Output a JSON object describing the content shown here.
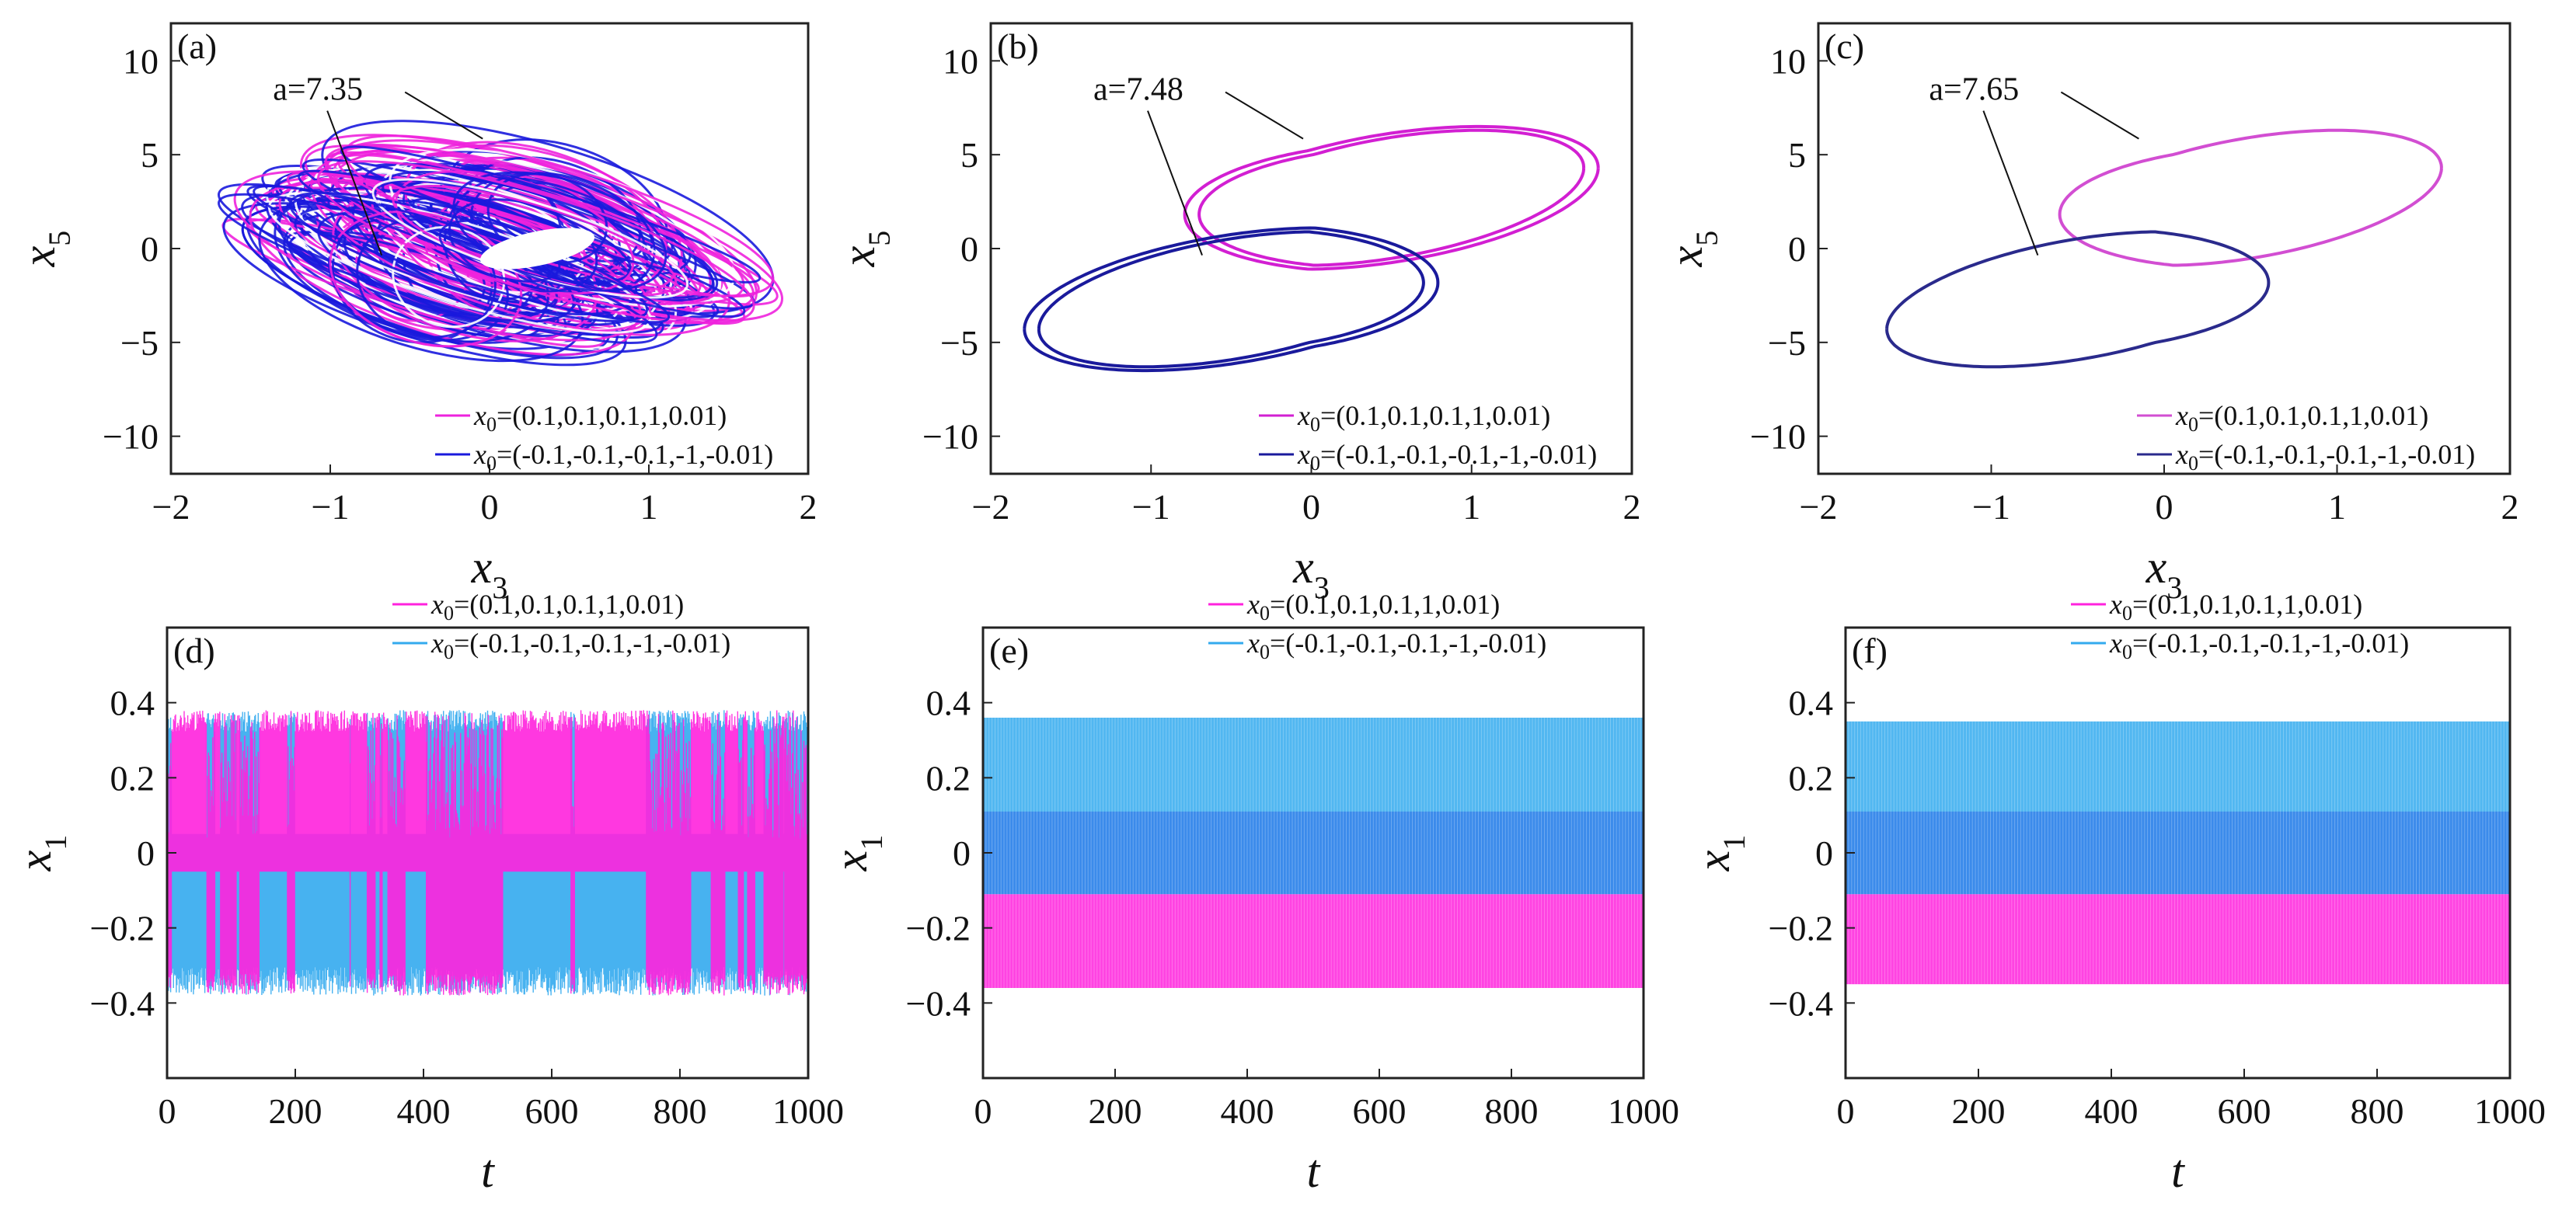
{
  "chart_data": [
    {
      "panel": "(a)",
      "type": "line",
      "kind": "phase",
      "xlim": [
        -2,
        2
      ],
      "ylim": [
        -12,
        12
      ],
      "xticks": [
        "−2",
        "−1",
        "0",
        "1",
        "2"
      ],
      "xtick_values": [
        -2,
        -1,
        0,
        1,
        2
      ],
      "yticks": [
        "10",
        "5",
        "0",
        "−5",
        "−10"
      ],
      "ytick_values": [
        10,
        5,
        0,
        -5,
        -10
      ],
      "xlabel": "x",
      "xlabel_sub": "3",
      "ylabel": "x",
      "ylabel_sub": "5",
      "annotation": "a=7.35",
      "behavior": "chaotic",
      "series": [
        {
          "legend_main": "x",
          "legend_sub": "0",
          "legend_rest": "=(0.1,0.1,0.1,1,0.01)",
          "color": "#ee22dd"
        },
        {
          "legend_main": "x",
          "legend_sub": "0",
          "legend_rest": "=(-0.1,-0.1,-0.1,-1,-0.01)",
          "color": "#1a1add"
        }
      ]
    },
    {
      "panel": "(b)",
      "type": "line",
      "kind": "phase",
      "xlim": [
        -2,
        2
      ],
      "ylim": [
        -12,
        12
      ],
      "xticks": [
        "−2",
        "−1",
        "0",
        "1",
        "2"
      ],
      "xtick_values": [
        -2,
        -1,
        0,
        1,
        2
      ],
      "yticks": [
        "10",
        "5",
        "0",
        "−5",
        "−10"
      ],
      "ytick_values": [
        10,
        5,
        0,
        -5,
        -10
      ],
      "xlabel": "x",
      "xlabel_sub": "3",
      "ylabel": "x",
      "ylabel_sub": "5",
      "annotation": "a=7.48",
      "behavior": "period-2",
      "series": [
        {
          "legend_main": "x",
          "legend_sub": "0",
          "legend_rest": "=(0.1,0.1,0.1,1,0.01)",
          "color": "#d21fd2"
        },
        {
          "legend_main": "x",
          "legend_sub": "0",
          "legend_rest": "=(-0.1,-0.1,-0.1,-1,-0.01)",
          "color": "#1a1a9c"
        }
      ]
    },
    {
      "panel": "(c)",
      "type": "line",
      "kind": "phase",
      "xlim": [
        -2,
        2
      ],
      "ylim": [
        -12,
        12
      ],
      "xticks": [
        "−2",
        "−1",
        "0",
        "1",
        "2"
      ],
      "xtick_values": [
        -2,
        -1,
        0,
        1,
        2
      ],
      "yticks": [
        "10",
        "5",
        "0",
        "−5",
        "−10"
      ],
      "ytick_values": [
        10,
        5,
        0,
        -5,
        -10
      ],
      "xlabel": "x",
      "xlabel_sub": "3",
      "ylabel": "x",
      "ylabel_sub": "5",
      "annotation": "a=7.65",
      "behavior": "period-1",
      "series": [
        {
          "legend_main": "x",
          "legend_sub": "0",
          "legend_rest": "=(0.1,0.1,0.1,1,0.01)",
          "color": "#d24ed2"
        },
        {
          "legend_main": "x",
          "legend_sub": "0",
          "legend_rest": "=(-0.1,-0.1,-0.1,-1,-0.01)",
          "color": "#2a2a8c"
        }
      ]
    },
    {
      "panel": "(d)",
      "type": "line",
      "kind": "timeseries",
      "xlim": [
        0,
        1000
      ],
      "ylim": [
        -0.6,
        0.6
      ],
      "xticks": [
        "0",
        "200",
        "400",
        "600",
        "800",
        "1000"
      ],
      "xtick_values": [
        0,
        200,
        400,
        600,
        800,
        1000
      ],
      "yticks": [
        "0.4",
        "0.2",
        "0",
        "−0.2",
        "−0.4"
      ],
      "ytick_values": [
        0.4,
        0.2,
        0,
        -0.2,
        -0.4
      ],
      "xlabel": "t",
      "ylabel": "x",
      "ylabel_sub": "1",
      "amplitude": 0.38,
      "behavior": "chaotic",
      "series": [
        {
          "legend_main": "x",
          "legend_sub": "0",
          "legend_rest": "=(0.1,0.1,0.1,1,0.01)",
          "color": "#ff22dd"
        },
        {
          "legend_main": "x",
          "legend_sub": "0",
          "legend_rest": "=(-0.1,-0.1,-0.1,-1,-0.01)",
          "color": "#33aaee"
        }
      ]
    },
    {
      "panel": "(e)",
      "type": "line",
      "kind": "timeseries",
      "xlim": [
        0,
        1000
      ],
      "ylim": [
        -0.6,
        0.6
      ],
      "xticks": [
        "0",
        "200",
        "400",
        "600",
        "800",
        "1000"
      ],
      "xtick_values": [
        0,
        200,
        400,
        600,
        800,
        1000
      ],
      "yticks": [
        "0.4",
        "0.2",
        "0",
        "−0.2",
        "−0.4"
      ],
      "ytick_values": [
        0.4,
        0.2,
        0,
        -0.2,
        -0.4
      ],
      "xlabel": "t",
      "ylabel": "x",
      "ylabel_sub": "1",
      "amplitude": 0.36,
      "behavior": "periodic",
      "series": [
        {
          "legend_main": "x",
          "legend_sub": "0",
          "legend_rest": "=(0.1,0.1,0.1,1,0.01)",
          "color": "#ff22dd"
        },
        {
          "legend_main": "x",
          "legend_sub": "0",
          "legend_rest": "=(-0.1,-0.1,-0.1,-1,-0.01)",
          "color": "#33aaee"
        }
      ]
    },
    {
      "panel": "(f)",
      "type": "line",
      "kind": "timeseries",
      "xlim": [
        0,
        1000
      ],
      "ylim": [
        -0.6,
        0.6
      ],
      "xticks": [
        "0",
        "200",
        "400",
        "600",
        "800",
        "1000"
      ],
      "xtick_values": [
        0,
        200,
        400,
        600,
        800,
        1000
      ],
      "yticks": [
        "0.4",
        "0.2",
        "0",
        "−0.2",
        "−0.4"
      ],
      "ytick_values": [
        0.4,
        0.2,
        0,
        -0.2,
        -0.4
      ],
      "xlabel": "t",
      "ylabel": "x",
      "ylabel_sub": "1",
      "amplitude": 0.35,
      "behavior": "periodic",
      "series": [
        {
          "legend_main": "x",
          "legend_sub": "0",
          "legend_rest": "=(0.1,0.1,0.1,1,0.01)",
          "color": "#ff22dd"
        },
        {
          "legend_main": "x",
          "legend_sub": "0",
          "legend_rest": "=(-0.1,-0.1,-0.1,-1,-0.01)",
          "color": "#33aaee"
        }
      ]
    }
  ]
}
